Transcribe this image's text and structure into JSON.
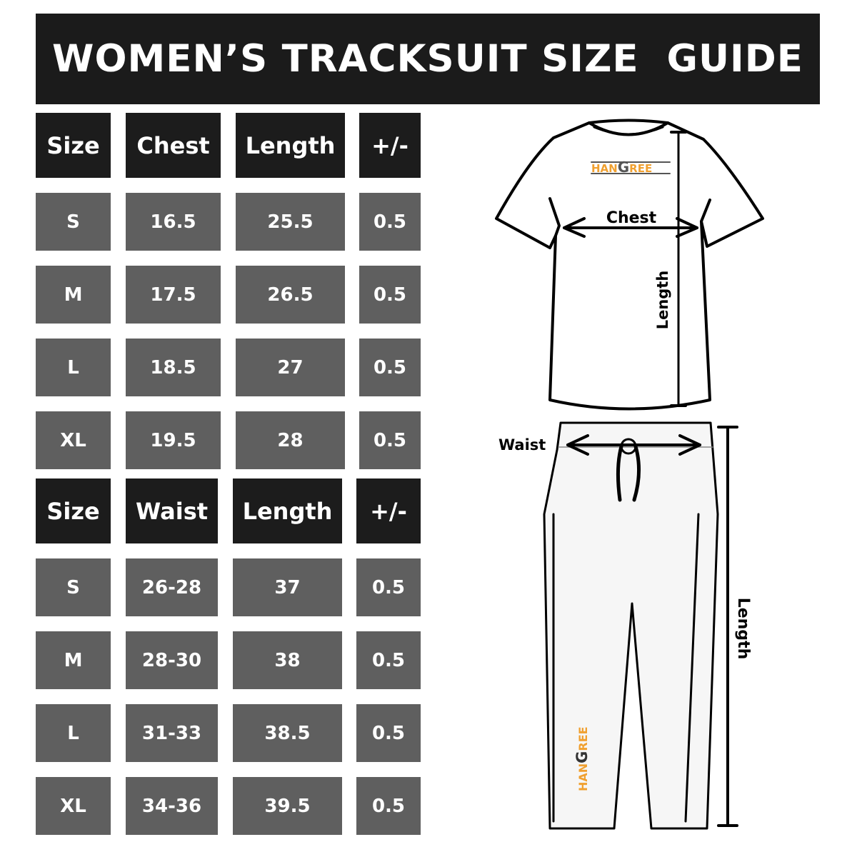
{
  "title": "WOMEN’S TRACKSUIT SIZE  GUIDE",
  "top_table": {
    "headers": [
      "Size",
      "Chest",
      "Length",
      "+/-"
    ],
    "rows": [
      [
        "S",
        "16.5",
        "25.5",
        "0.5"
      ],
      [
        "M",
        "17.5",
        "26.5",
        "0.5"
      ],
      [
        "L",
        "18.5",
        "27",
        "0.5"
      ],
      [
        "XL",
        "19.5",
        "28",
        "0.5"
      ]
    ]
  },
  "bottom_table": {
    "headers": [
      "Size",
      "Waist",
      "Length",
      "+/-"
    ],
    "rows": [
      [
        "S",
        "26-28",
        "37",
        "0.5"
      ],
      [
        "M",
        "28-30",
        "38",
        "0.5"
      ],
      [
        "L",
        "31-33",
        "38.5",
        "0.5"
      ],
      [
        "XL",
        "34-36",
        "39.5",
        "0.5"
      ]
    ]
  },
  "diagram": {
    "shirt_chest_label": "Chest",
    "shirt_length_label": "Length",
    "pants_waist_label": "Waist",
    "pants_length_label": "Length",
    "logo": "HANGREE"
  },
  "colors": {
    "header": "#1c1c1c",
    "cell": "#5f5f5f",
    "logo_orange": "#f0a030",
    "logo_gray": "#555555"
  }
}
